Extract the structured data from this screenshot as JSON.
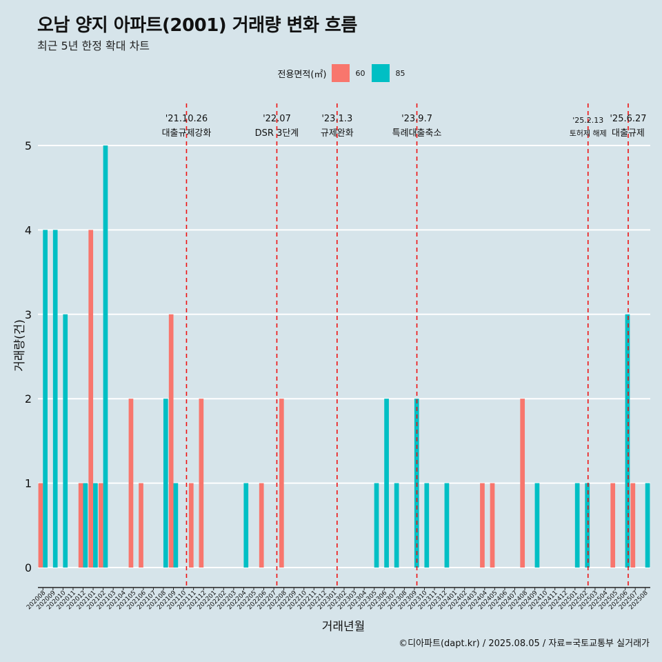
{
  "title": "오남 양지 아파트(2001) 거래량 변화 흐름",
  "subtitle": "최근 5년 한정 확대 차트",
  "caption": "©디아파트(dapt.kr) / 2025.08.05 / 자료=국토교통부 실거래가",
  "legend": {
    "title": "전용면적(㎡)",
    "items": [
      {
        "label": "60",
        "color": "#f8766d"
      },
      {
        "label": "85",
        "color": "#00bfc4"
      }
    ]
  },
  "chart_data": {
    "type": "bar",
    "xlabel": "거래년월",
    "ylabel": "거래량(건)",
    "ylim": [
      0,
      5
    ],
    "yticks": [
      0,
      1,
      2,
      3,
      4,
      5
    ],
    "grid": true,
    "legend_position": "top",
    "categories": [
      "202008",
      "202009",
      "202010",
      "202011",
      "202012",
      "202101",
      "202102",
      "202103",
      "202104",
      "202105",
      "202106",
      "202107",
      "202108",
      "202109",
      "202110",
      "202111",
      "202112",
      "202201",
      "202202",
      "202203",
      "202204",
      "202205",
      "202206",
      "202207",
      "202208",
      "202209",
      "202210",
      "202211",
      "202212",
      "202301",
      "202302",
      "202303",
      "202304",
      "202305",
      "202306",
      "202307",
      "202308",
      "202309",
      "202310",
      "202311",
      "202312",
      "202401",
      "202402",
      "202403",
      "202404",
      "202405",
      "202406",
      "202407",
      "202408",
      "202409",
      "202410",
      "202411",
      "202412",
      "202501",
      "202502",
      "202503",
      "202504",
      "202505",
      "202506",
      "202507",
      "202508"
    ],
    "series": [
      {
        "name": "60",
        "color": "#f8766d",
        "values": [
          1,
          0,
          0,
          0,
          1,
          4,
          1,
          0,
          0,
          2,
          1,
          0,
          0,
          3,
          0,
          1,
          2,
          0,
          0,
          0,
          0,
          0,
          1,
          0,
          2,
          0,
          0,
          0,
          0,
          0,
          0,
          0,
          0,
          0,
          0,
          0,
          0,
          0,
          0,
          0,
          0,
          0,
          0,
          0,
          1,
          1,
          0,
          0,
          2,
          0,
          0,
          0,
          0,
          0,
          0,
          0,
          0,
          1,
          0,
          1,
          0
        ]
      },
      {
        "name": "85",
        "color": "#00bfc4",
        "values": [
          4,
          4,
          3,
          0,
          1,
          1,
          5,
          0,
          0,
          0,
          0,
          0,
          2,
          1,
          0,
          0,
          0,
          0,
          0,
          0,
          1,
          0,
          0,
          0,
          0,
          0,
          0,
          0,
          0,
          0,
          0,
          0,
          0,
          1,
          2,
          1,
          0,
          2,
          1,
          0,
          1,
          0,
          0,
          0,
          0,
          0,
          0,
          0,
          0,
          1,
          0,
          0,
          0,
          1,
          1,
          0,
          0,
          0,
          3,
          0,
          1
        ]
      }
    ],
    "annotations": [
      {
        "date": "'21.10.26",
        "text": "대출규제강화",
        "x_index": 14.3
      },
      {
        "date": "'22.07",
        "text": "DSR 3단계",
        "x_index": 23.3
      },
      {
        "date": "'23.1.3",
        "text": "규제완화",
        "x_index": 29.3
      },
      {
        "date": "'23.9.7",
        "text": "특례대출축소",
        "x_index": 37.25
      },
      {
        "date": "'25.2.13",
        "text": "토허제 해제",
        "x_index": 54.3
      },
      {
        "date": "'25.6.27",
        "text": "대출규제",
        "x_index": 58.3
      }
    ]
  }
}
